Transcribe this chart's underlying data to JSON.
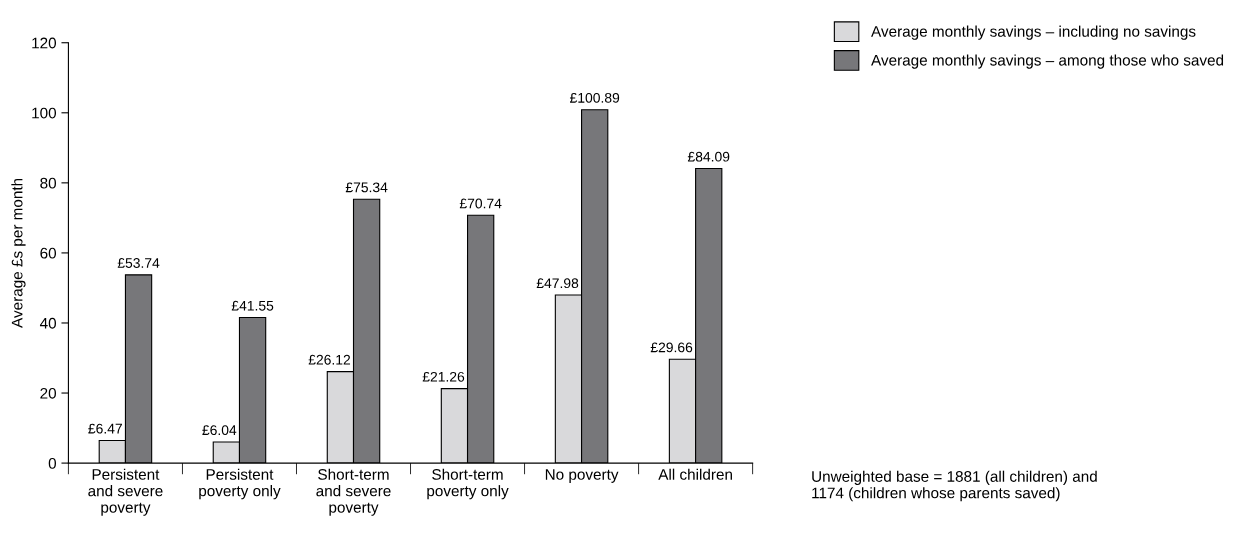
{
  "chart_data": {
    "type": "bar",
    "ylabel": "Average £s per month",
    "categories": [
      "Persistent\nand severe\npoverty",
      "Persistent\npoverty only",
      "Short-term\nand severe\npoverty",
      "Short-term\npoverty only",
      "No poverty",
      "All children"
    ],
    "series": [
      {
        "name": "Average monthly savings – including no savings",
        "color": "#d9d9db",
        "values": [
          6.47,
          6.04,
          26.12,
          21.26,
          47.98,
          29.66
        ],
        "value_labels": [
          "£6.47",
          "£6.04",
          "£26.12",
          "£21.26",
          "£47.98",
          "£29.66"
        ]
      },
      {
        "name": "Average monthly savings – among those who saved",
        "color": "#77777a",
        "values": [
          53.74,
          41.55,
          75.34,
          70.74,
          100.89,
          84.09
        ],
        "value_labels": [
          "£53.74",
          "£41.55",
          "£75.34",
          "£70.74",
          "£100.89",
          "£84.09"
        ]
      }
    ],
    "ylim": [
      0,
      120
    ],
    "yticks": [
      0,
      20,
      40,
      60,
      80,
      100,
      120
    ],
    "grid": false,
    "legend": "top right",
    "annotations": [
      "Unweighted base = 1881 (all children) and\n1174 (children whose parents saved)"
    ]
  }
}
